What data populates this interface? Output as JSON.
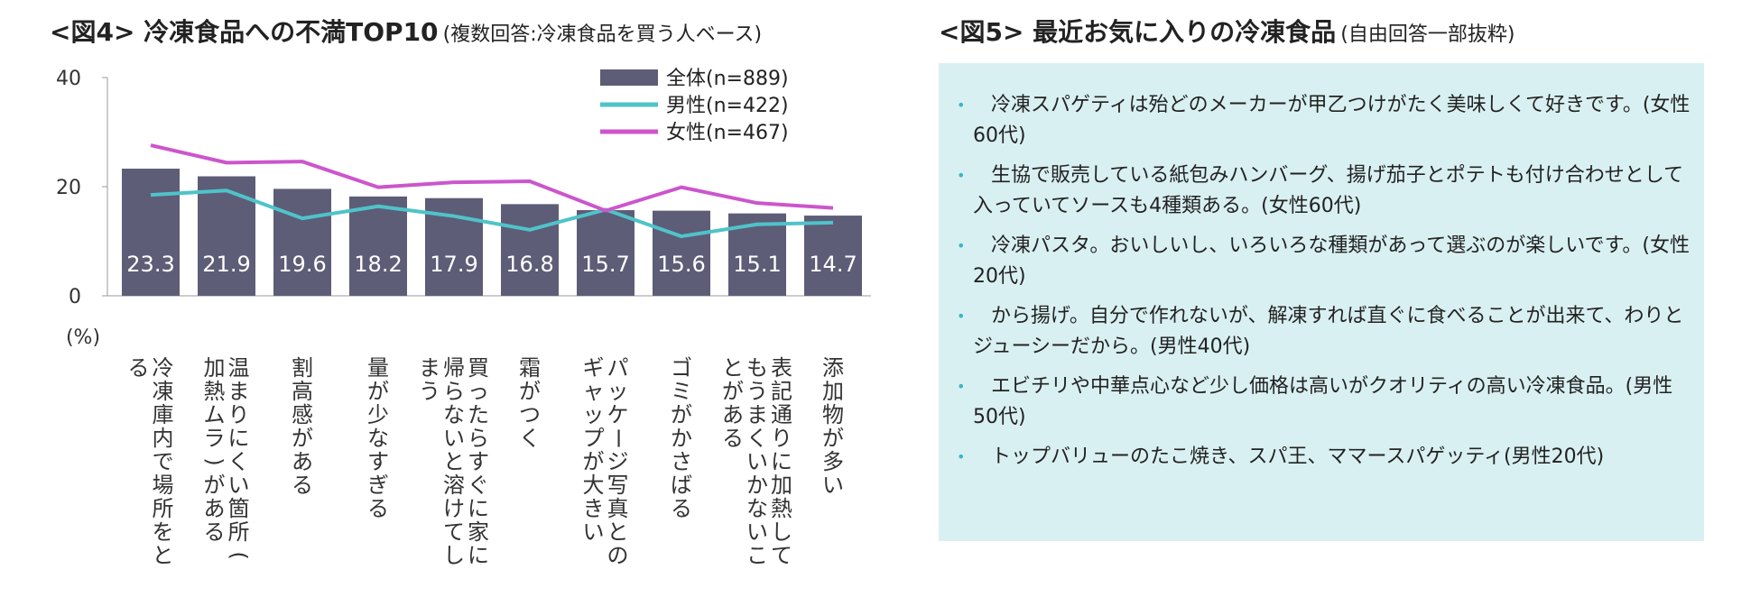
{
  "fig4": {
    "title": "<図4> 冷凍食品への不満TOP10",
    "subtitle": "(複数回答:冷凍食品を買う人ベース)"
  },
  "fig5": {
    "title": "<図5> 最近お気に入りの冷凍食品",
    "subtitle": "(自由回答一部抜粋)",
    "comments": [
      "冷凍スパゲティは殆どのメーカーが甲乙つけがたく美味しくて好きです。(女性60代)",
      "生協で販売している紙包みハンバーグ、揚げ茄子とポテトも付け合わせとして入っていてソースも4種類ある。(女性60代)",
      "冷凍パスタ。おいしいし、いろいろな種類があって選ぶのが楽しいです。(女性20代)",
      "から揚げ。自分で作れないが、解凍すれば直ぐに食べることが出来て、わりとジューシーだから。(男性40代)",
      "エビチリや中華点心など少し価格は高いがクオリティの高い冷凍食品。(男性50代)",
      "トップバリューのたこ焼き、スパ王、ママースパゲッティ(男性20代)"
    ]
  },
  "chart_data": {
    "type": "bar",
    "title": "<図4> 冷凍食品への不満TOP10",
    "ylabel": "(%)",
    "ylim": [
      0,
      40
    ],
    "yticks": [
      0,
      20,
      40
    ],
    "legend_position": "top-right",
    "categories": [
      "冷凍庫内で場所をとる",
      "温まりにくい箇所(加熱ムラ)がある",
      "割高感がある",
      "量が少なすぎる",
      "買ったらすぐに家に帰らないと溶けてしまう",
      "霜がつく",
      "パッケージ写真とのギャップが大きい",
      "ゴミがかさばる",
      "表記通りに加熱してもうまくいかないことがある",
      "添加物が多い"
    ],
    "series": [
      {
        "name": "全体(n=889)",
        "kind": "bar",
        "color": "#5d5d78",
        "values": [
          23.3,
          21.9,
          19.6,
          18.2,
          17.9,
          16.8,
          15.7,
          15.6,
          15.1,
          14.7
        ]
      },
      {
        "name": "男性(n=422)",
        "kind": "line",
        "color": "#4fc3c9",
        "values": [
          18.5,
          19.3,
          14.2,
          16.4,
          14.6,
          12.1,
          15.8,
          10.9,
          13.1,
          13.4
        ]
      },
      {
        "name": "女性(n=467)",
        "kind": "line",
        "color": "#cc55cc",
        "values": [
          27.6,
          24.4,
          24.6,
          19.9,
          20.8,
          21.0,
          15.6,
          19.9,
          17.0,
          16.1
        ]
      }
    ]
  }
}
